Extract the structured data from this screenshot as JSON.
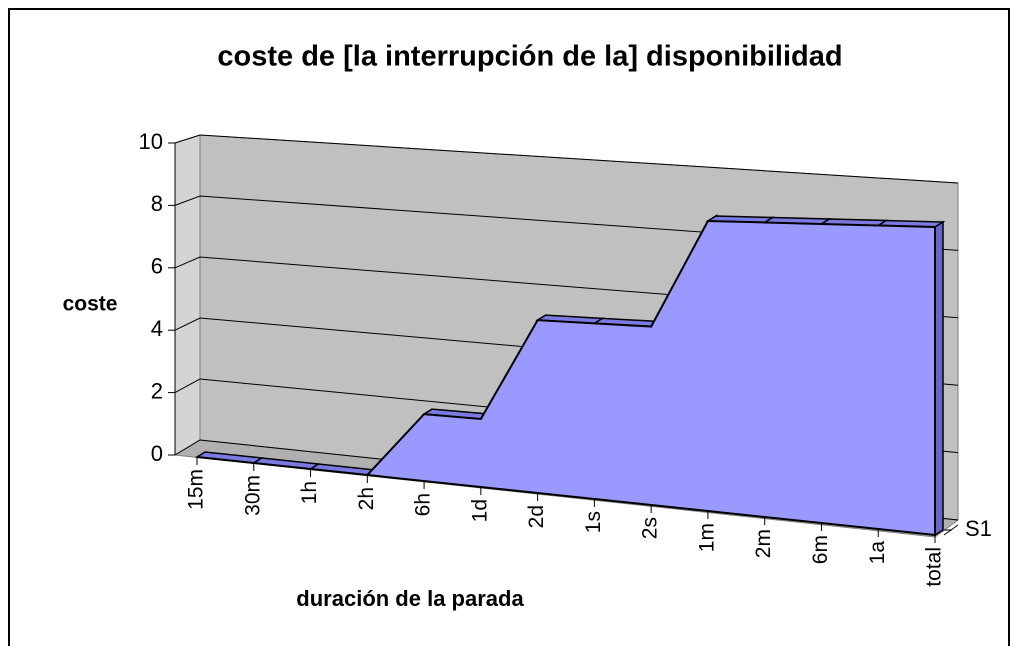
{
  "chart_data": {
    "type": "area3d",
    "title": "coste de [la interrupción de la] disponibilidad",
    "y_label": "coste",
    "x_label": "duración de la parada",
    "categories": [
      "15m",
      "30m",
      "1h",
      "2h",
      "6h",
      "1d",
      "2d",
      "1s",
      "2s",
      "1m",
      "2m",
      "6m",
      "1a",
      "total"
    ],
    "series": [
      {
        "name": "S1",
        "color": "#9999ff",
        "values": [
          0,
          0,
          0,
          0,
          2,
          2,
          5,
          5,
          5,
          8,
          8,
          8,
          8,
          8
        ]
      }
    ],
    "ylim": [
      0,
      10
    ],
    "yticks": [
      0,
      2,
      4,
      6,
      8,
      10
    ],
    "grid": true
  }
}
